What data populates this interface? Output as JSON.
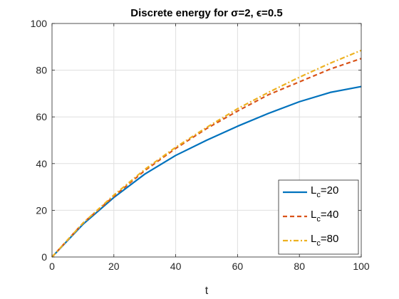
{
  "chart_data": {
    "type": "line",
    "title": "Discrete energy for σ=2, ϵ=0.5",
    "xlabel": "t",
    "ylabel": "",
    "xlim": [
      0,
      100
    ],
    "ylim": [
      0,
      100
    ],
    "xticks": [
      0,
      20,
      40,
      60,
      80,
      100
    ],
    "yticks": [
      0,
      20,
      40,
      60,
      80,
      100
    ],
    "grid": true,
    "legend_position": "bottom-right",
    "x": [
      0,
      10,
      20,
      30,
      40,
      50,
      60,
      70,
      80,
      90,
      100
    ],
    "series": [
      {
        "name": "L_c=20",
        "label_main": "L",
        "label_sub": "c",
        "label_value": "=20",
        "color": "#0072BD",
        "dash": "solid",
        "values": [
          0,
          14,
          25.5,
          35.5,
          43.5,
          50,
          56,
          61.5,
          66.5,
          70.5,
          73
        ]
      },
      {
        "name": "L_c=40",
        "label_main": "L",
        "label_sub": "c",
        "label_value": "=40",
        "color": "#D95319",
        "dash": "dashed",
        "values": [
          0,
          14.5,
          26,
          37,
          46.5,
          55,
          62.5,
          69.5,
          75,
          80.5,
          85
        ]
      },
      {
        "name": "L_c=80",
        "label_main": "L",
        "label_sub": "c",
        "label_value": "=80",
        "color": "#EDB120",
        "dash": "dashdot",
        "values": [
          0,
          14.5,
          26.5,
          37.5,
          47,
          55.5,
          63.5,
          70.5,
          77,
          83,
          88.5
        ]
      }
    ]
  }
}
